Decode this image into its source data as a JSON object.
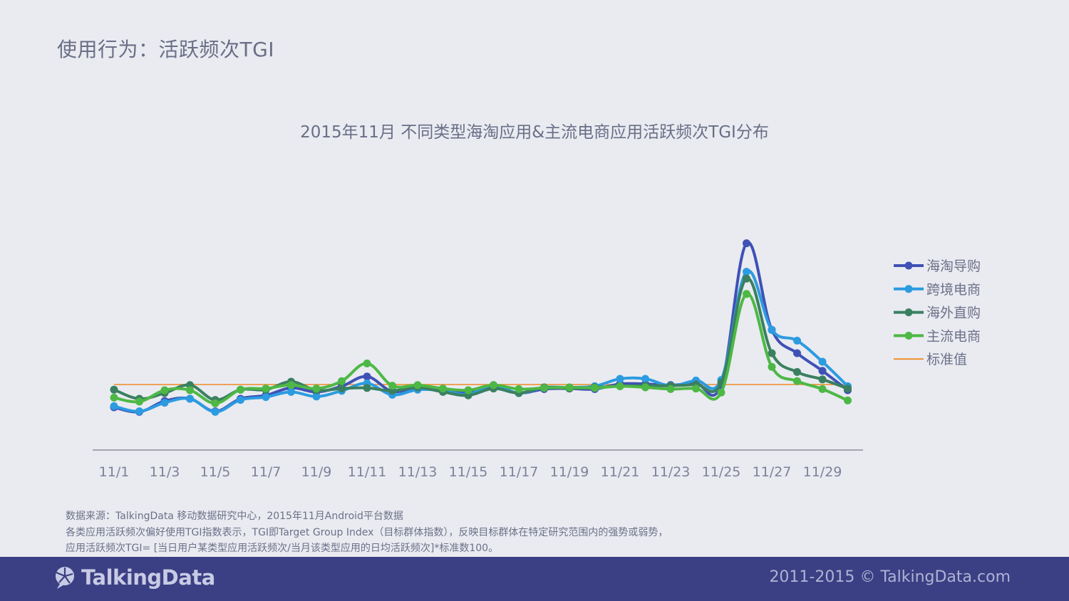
{
  "page": {
    "title": "使用行为：活跃频次TGI"
  },
  "notes": [
    "数据来源：TalkingData 移动数据研究中心，2015年11月Android平台数据",
    "各类应用活跃频次偏好使用TGI指数表示，TGI即Target Group Index（目标群体指数），反映目标群体在特定研究范围内的强势或弱势，",
    "应用活跃频次TGI= [当日用户某类型应用活跃频次/当月该类型应用的日均活跃频次]*标准数100。"
  ],
  "footer": {
    "brand": "TalkingData",
    "copyright": "2011-2015 © TalkingData.com"
  },
  "chart_data": {
    "type": "line",
    "title": "2015年11月 不同类型海淘应用&主流电商应用活跃频次TGI分布",
    "xlabel": "",
    "ylabel": "",
    "x": [
      "11/1",
      "11/2",
      "11/3",
      "11/4",
      "11/5",
      "11/6",
      "11/7",
      "11/8",
      "11/9",
      "11/10",
      "11/11",
      "11/12",
      "11/13",
      "11/14",
      "11/15",
      "11/16",
      "11/17",
      "11/18",
      "11/19",
      "11/20",
      "11/21",
      "11/22",
      "11/23",
      "11/24",
      "11/25",
      "11/26",
      "11/27",
      "11/28",
      "11/29",
      "11/30"
    ],
    "x_tick_labels": [
      "11/1",
      "11/3",
      "11/5",
      "11/7",
      "11/9",
      "11/11",
      "11/13",
      "11/15",
      "11/17",
      "11/19",
      "11/21",
      "11/23",
      "11/25",
      "11/27",
      "11/29"
    ],
    "ylim": [
      0,
      400
    ],
    "grid": false,
    "legend_position": "right",
    "series": [
      {
        "name": "海淘导购",
        "color": "#3f51b5",
        "values": [
          75,
          67,
          86,
          90,
          68,
          90,
          96,
          109,
          102,
          112,
          129,
          103,
          110,
          104,
          102,
          111,
          100,
          107,
          108,
          107,
          116,
          116,
          114,
          117,
          115,
          363,
          211,
          170,
          139,
          105
        ]
      },
      {
        "name": "跨境电商",
        "color": "#2c9be0",
        "values": [
          77,
          68,
          83,
          90,
          67,
          88,
          93,
          102,
          94,
          104,
          117,
          97,
          106,
          104,
          98,
          114,
          100,
          110,
          110,
          112,
          125,
          125,
          113,
          122,
          123,
          313,
          211,
          192,
          155,
          112
        ]
      },
      {
        "name": "海外直购",
        "color": "#3a8060",
        "values": [
          106,
          90,
          100,
          114,
          88,
          106,
          106,
          120,
          105,
          108,
          109,
          104,
          110,
          102,
          96,
          108,
          100,
          110,
          108,
          110,
          112,
          113,
          113,
          115,
          118,
          301,
          170,
          137,
          124,
          108
        ]
      },
      {
        "name": "主流电商",
        "color": "#4db845",
        "values": [
          92,
          85,
          105,
          105,
          82,
          106,
          108,
          114,
          108,
          121,
          152,
          113,
          114,
          108,
          105,
          114,
          107,
          109,
          110,
          109,
          112,
          110,
          107,
          108,
          101,
          274,
          146,
          121,
          107,
          87
        ]
      },
      {
        "name": "标准值",
        "color": "#f08a24",
        "values": [
          115,
          115,
          115,
          115,
          115,
          115,
          115,
          115,
          115,
          115,
          115,
          115,
          115,
          115,
          115,
          115,
          115,
          115,
          115,
          115,
          115,
          115,
          115,
          115,
          115,
          115,
          115,
          115,
          115,
          115
        ],
        "style": "line-only"
      }
    ]
  }
}
